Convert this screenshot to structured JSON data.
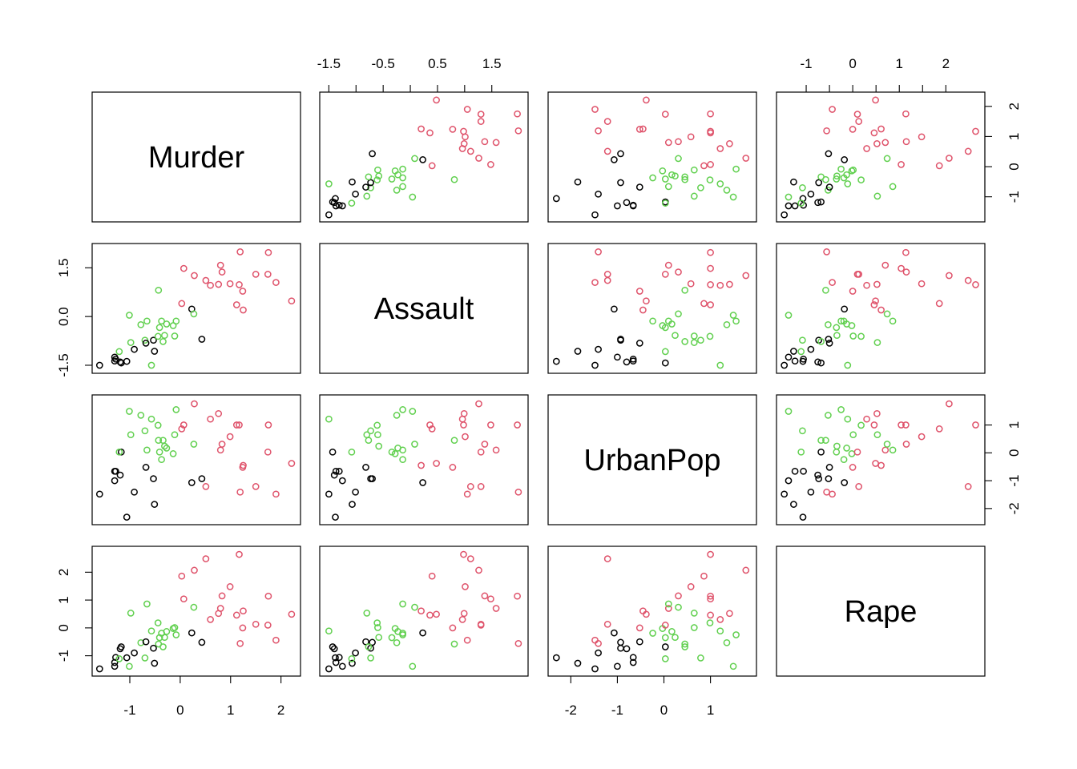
{
  "chart_data": {
    "type": "scatter",
    "subtype": "scatterplot-matrix",
    "variables": [
      "Murder",
      "Assault",
      "UrbanPop",
      "Rape"
    ],
    "cluster_colors": [
      "#000000",
      "#DF536B",
      "#61D04F"
    ],
    "axis_ranges": {
      "Murder": [
        -1.62,
        2.26
      ],
      "Assault": [
        -1.55,
        2.05
      ],
      "UrbanPop": [
        -2.35,
        1.85
      ],
      "Rape": [
        -1.5,
        2.7
      ]
    },
    "axis_ticks": {
      "Murder": [
        -1,
        0,
        1,
        2
      ],
      "Assault": [
        -1.5,
        -0.5,
        0.5,
        1.5
      ],
      "AssaultLeft": [
        -1.5,
        0.0,
        1.5
      ],
      "UrbanPop": [
        -2,
        -1,
        0,
        1
      ],
      "Rape": [
        -1,
        0,
        1,
        2
      ]
    },
    "tick_labels": {
      "Murder": [
        "-1",
        "0",
        "1",
        "2"
      ],
      "Assault": [
        "-1.5",
        "-0.5",
        "0.5",
        "1.5"
      ],
      "AssaultLeft": [
        "-1.5",
        "0.0",
        "1.5"
      ],
      "UrbanPop": [
        "-2",
        "-1",
        "0",
        "1"
      ],
      "Rape": [
        "-1",
        "0",
        "1",
        "2"
      ]
    },
    "grid": false,
    "legend": "none",
    "observations": [
      {
        "cluster": 1,
        "Murder": 1.24,
        "Assault": 0.78,
        "UrbanPop": -0.52,
        "Rape": -0.0
      },
      {
        "cluster": 1,
        "Murder": 0.51,
        "Assault": 1.11,
        "UrbanPop": -1.21,
        "Rape": 2.48
      },
      {
        "cluster": 1,
        "Murder": 0.07,
        "Assault": 1.48,
        "UrbanPop": 1.0,
        "Rape": 1.04
      },
      {
        "cluster": 0,
        "Murder": 0.23,
        "Assault": 0.23,
        "UrbanPop": -1.07,
        "Rape": -0.18
      },
      {
        "cluster": 1,
        "Murder": 0.28,
        "Assault": 1.26,
        "UrbanPop": 1.76,
        "Rape": 2.07
      },
      {
        "cluster": 1,
        "Murder": 0.03,
        "Assault": 0.4,
        "UrbanPop": 0.86,
        "Rape": 1.86
      },
      {
        "cluster": 2,
        "Murder": -0.7,
        "Assault": -0.73,
        "UrbanPop": 0.79,
        "Rape": -1.08
      },
      {
        "cluster": 2,
        "Murder": -0.43,
        "Assault": 0.81,
        "UrbanPop": 0.45,
        "Rape": -0.58
      },
      {
        "cluster": 1,
        "Murder": 1.75,
        "Assault": 1.97,
        "UrbanPop": 1.0,
        "Rape": 1.14
      },
      {
        "cluster": 1,
        "Murder": 2.21,
        "Assault": 0.48,
        "UrbanPop": -0.38,
        "Rape": 0.49
      },
      {
        "cluster": 2,
        "Murder": -0.57,
        "Assault": -1.5,
        "UrbanPop": 1.21,
        "Rape": -0.11
      },
      {
        "cluster": 0,
        "Murder": -1.19,
        "Assault": -1.4,
        "UrbanPop": -0.8,
        "Rape": -0.75
      },
      {
        "cluster": 1,
        "Murder": 0.6,
        "Assault": 0.96,
        "UrbanPop": 1.21,
        "Rape": 0.3
      },
      {
        "cluster": 2,
        "Murder": -0.14,
        "Assault": -0.28,
        "UrbanPop": -0.03,
        "Rape": -0.02
      },
      {
        "cluster": 0,
        "Murder": -1.28,
        "Assault": -1.31,
        "UrbanPop": -0.66,
        "Rape": -1.06
      },
      {
        "cluster": 2,
        "Murder": -0.41,
        "Assault": -0.34,
        "UrbanPop": 0.03,
        "Rape": -0.35
      },
      {
        "cluster": 0,
        "Murder": 0.43,
        "Assault": -0.7,
        "UrbanPop": -0.93,
        "Rape": -0.52
      },
      {
        "cluster": 1,
        "Murder": 1.74,
        "Assault": 1.3,
        "UrbanPop": 0.03,
        "Rape": 0.1
      },
      {
        "cluster": 0,
        "Murder": -1.3,
        "Assault": -1.25,
        "UrbanPop": -1.0,
        "Rape": -1.38
      },
      {
        "cluster": 1,
        "Murder": 0.8,
        "Assault": 1.58,
        "UrbanPop": 0.1,
        "Rape": 0.7
      },
      {
        "cluster": 2,
        "Murder": -0.78,
        "Assault": -0.25,
        "UrbanPop": 1.35,
        "Rape": -0.53
      },
      {
        "cluster": 1,
        "Murder": 0.99,
        "Assault": 1.01,
        "UrbanPop": 0.58,
        "Rape": 1.48
      },
      {
        "cluster": 0,
        "Murder": -1.17,
        "Assault": -1.43,
        "UrbanPop": 0.03,
        "Rape": -0.68
      },
      {
        "cluster": 1,
        "Murder": 1.9,
        "Assault": 1.05,
        "UrbanPop": -1.48,
        "Rape": -0.44
      },
      {
        "cluster": 2,
        "Murder": 0.27,
        "Assault": 0.08,
        "UrbanPop": 0.31,
        "Rape": 0.74
      },
      {
        "cluster": 0,
        "Murder": -0.53,
        "Assault": -0.73,
        "UrbanPop": -0.93,
        "Rape": -0.73
      },
      {
        "cluster": 0,
        "Murder": -0.68,
        "Assault": -0.82,
        "UrbanPop": -0.52,
        "Rape": -0.5
      },
      {
        "cluster": 1,
        "Murder": 1.17,
        "Assault": 0.98,
        "UrbanPop": 1.0,
        "Rape": 2.64
      },
      {
        "cluster": 0,
        "Murder": -1.3,
        "Assault": -1.37,
        "UrbanPop": -0.66,
        "Rape": -1.24
      },
      {
        "cluster": 2,
        "Murder": -0.08,
        "Assault": -0.14,
        "UrbanPop": 1.55,
        "Rape": -0.25
      },
      {
        "cluster": 1,
        "Murder": 0.83,
        "Assault": 1.37,
        "UrbanPop": 0.31,
        "Rape": 1.15
      },
      {
        "cluster": 1,
        "Murder": 0.76,
        "Assault": 0.99,
        "UrbanPop": 1.41,
        "Rape": 0.52
      },
      {
        "cluster": 1,
        "Murder": 1.19,
        "Assault": 1.99,
        "UrbanPop": -1.41,
        "Rape": -0.56
      },
      {
        "cluster": 0,
        "Murder": -1.6,
        "Assault": -1.5,
        "UrbanPop": -1.48,
        "Rape": -1.47
      },
      {
        "cluster": 2,
        "Murder": -0.11,
        "Assault": -0.6,
        "UrbanPop": 0.65,
        "Rape": 0.01
      },
      {
        "cluster": 2,
        "Murder": -0.27,
        "Assault": -0.23,
        "UrbanPop": 0.17,
        "Rape": -0.13
      },
      {
        "cluster": 2,
        "Murder": -0.66,
        "Assault": -0.14,
        "UrbanPop": 0.1,
        "Rape": 0.86
      },
      {
        "cluster": 2,
        "Murder": -0.34,
        "Assault": -0.77,
        "UrbanPop": 0.45,
        "Rape": -0.68
      },
      {
        "cluster": 2,
        "Murder": -1.01,
        "Assault": 0.04,
        "UrbanPop": 1.49,
        "Rape": -1.38
      },
      {
        "cluster": 1,
        "Murder": 1.5,
        "Assault": 1.3,
        "UrbanPop": -1.21,
        "Rape": 0.13
      },
      {
        "cluster": 0,
        "Murder": -0.91,
        "Assault": -1.01,
        "UrbanPop": -1.41,
        "Rape": -0.9
      },
      {
        "cluster": 1,
        "Murder": 1.25,
        "Assault": 0.2,
        "UrbanPop": -0.45,
        "Rape": 0.61
      },
      {
        "cluster": 1,
        "Murder": 1.12,
        "Assault": 0.36,
        "UrbanPop": 1.0,
        "Rape": 0.46
      },
      {
        "cluster": 2,
        "Murder": -0.44,
        "Assault": -0.61,
        "UrbanPop": 0.99,
        "Rape": 0.18
      },
      {
        "cluster": 0,
        "Murder": -1.06,
        "Assault": -1.38,
        "UrbanPop": -2.31,
        "Rape": -1.07
      },
      {
        "cluster": 2,
        "Murder": -0.37,
        "Assault": -0.14,
        "UrbanPop": -0.24,
        "Rape": -0.19
      },
      {
        "cluster": 2,
        "Murder": -0.98,
        "Assault": -0.8,
        "UrbanPop": 0.65,
        "Rape": 0.53
      },
      {
        "cluster": 0,
        "Murder": -0.51,
        "Assault": -1.07,
        "UrbanPop": -1.85,
        "Rape": -1.27
      },
      {
        "cluster": 2,
        "Murder": -1.21,
        "Assault": -1.08,
        "UrbanPop": 0.03,
        "Rape": -1.11
      },
      {
        "cluster": 2,
        "Murder": -0.31,
        "Assault": -0.58,
        "UrbanPop": 0.24,
        "Rape": -0.34
      }
    ]
  }
}
